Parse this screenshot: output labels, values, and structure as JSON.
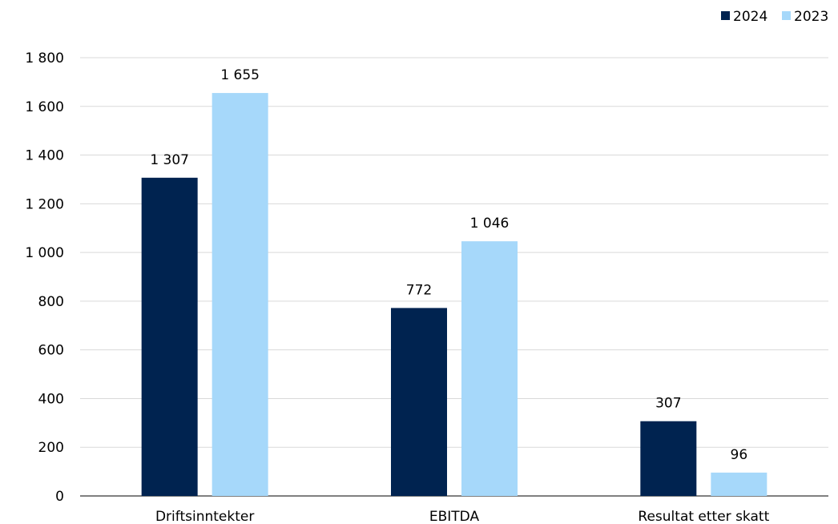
{
  "chart_data": {
    "type": "bar",
    "categories": [
      "Driftsinntekter",
      "EBITDA",
      "Resultat etter skatt"
    ],
    "series": [
      {
        "name": "2024",
        "values": [
          1307,
          772,
          307
        ],
        "labels": [
          "1 307",
          "772",
          "307"
        ]
      },
      {
        "name": "2023",
        "values": [
          1655,
          1046,
          96
        ],
        "labels": [
          "1 655",
          "1 046",
          "96"
        ]
      }
    ],
    "ylim": [
      0,
      1800
    ],
    "yticks": [
      0,
      200,
      400,
      600,
      800,
      1000,
      1200,
      1400,
      1600,
      1800
    ],
    "ytick_labels": [
      "0",
      "200",
      "400",
      "600",
      "800",
      "1 000",
      "1 200",
      "1 400",
      "1 600",
      "1 800"
    ],
    "grid": true,
    "legend_position": "top-right",
    "title": "",
    "xlabel": "",
    "ylabel": ""
  },
  "colors": {
    "series_2024": "#002350",
    "series_2023": "#a6d8fa",
    "grid": "#d9d9d9",
    "axis": "#000000"
  }
}
